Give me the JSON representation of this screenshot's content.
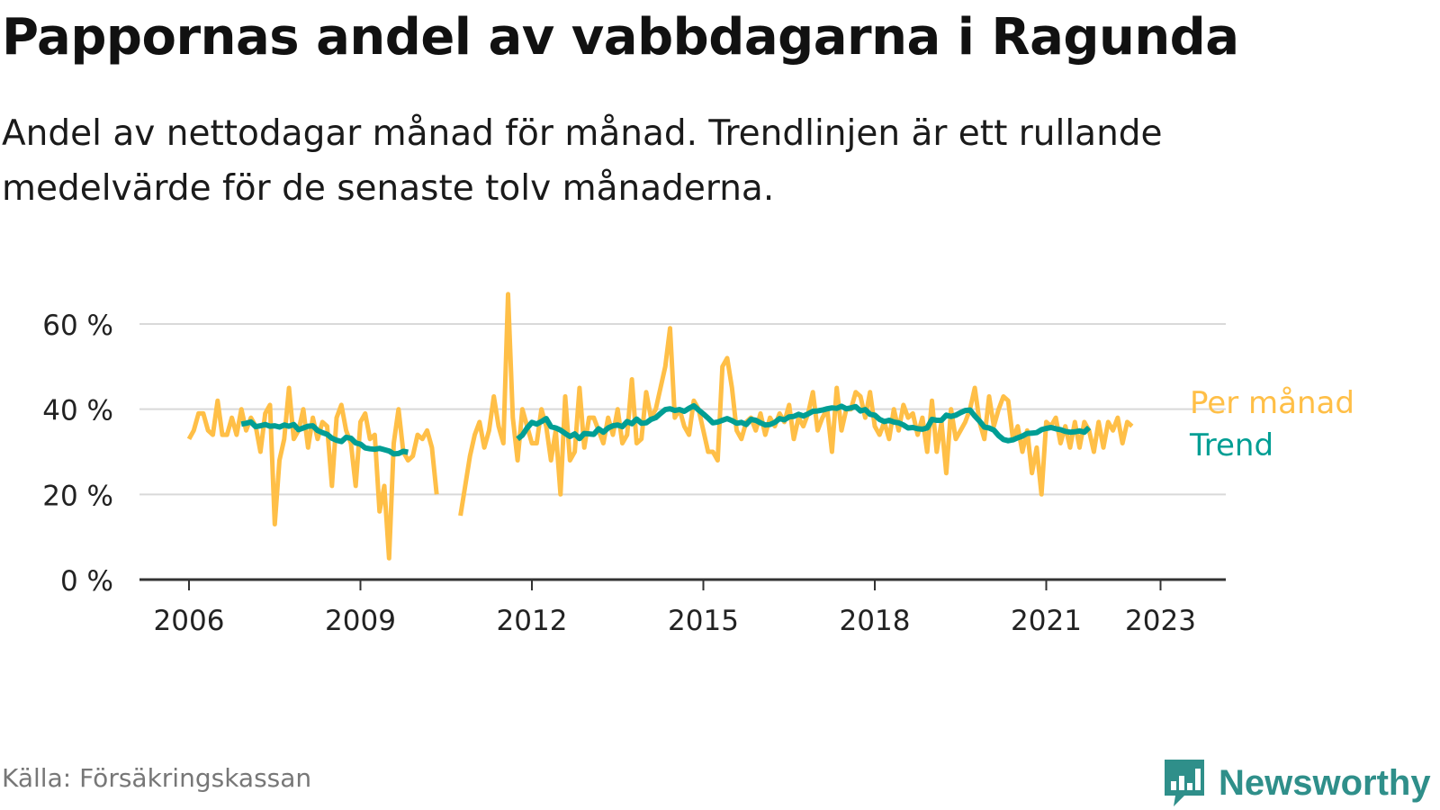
{
  "title": "Pappornas andel av vabbdagarna i Ragunda",
  "subtitle": "Andel av nettodagar månad för månad. Trendlinjen är ett rullande medelvärde för de senaste tolv månaderna.",
  "source": "Källa: Försäkringskassan",
  "brand": {
    "name": "Newsworthy",
    "logo_icon": "bar-chart-speech-bubble-icon"
  },
  "colors": {
    "monthly": "#ffbf47",
    "trend": "#009e94",
    "grid": "#d9d9d9",
    "axis": "#333333",
    "brand": "#2f8f8a"
  },
  "chart_data": {
    "type": "line",
    "xlabel": "",
    "ylabel": "",
    "x_ticks": [
      "2006",
      "2009",
      "2012",
      "2015",
      "2018",
      "2021",
      "2023"
    ],
    "x_tick_values": [
      2006,
      2009,
      2012,
      2015,
      2018,
      2021,
      2023
    ],
    "y_ticks": [
      "0 %",
      "20 %",
      "40 %",
      "60 %"
    ],
    "y_tick_values": [
      0,
      20,
      40,
      60
    ],
    "xlim": [
      2006,
      2024.2
    ],
    "ylim": [
      0,
      60
    ],
    "series": [
      {
        "name": "Per månad",
        "color": "#ffbf47",
        "segments": [
          {
            "start": 2006.0,
            "values": [
              33,
              35,
              39,
              39,
              35,
              34,
              42,
              34,
              34,
              38,
              34,
              40,
              35,
              38,
              36,
              30,
              39,
              41,
              13,
              28,
              33,
              45,
              33,
              35,
              40,
              31,
              38,
              33,
              37,
              36,
              22,
              38,
              41,
              35,
              32,
              22,
              37,
              39,
              33,
              34,
              16,
              22,
              5,
              32,
              40,
              30,
              28,
              29,
              34,
              33,
              35,
              31,
              20
            ]
          },
          {
            "start": 2010.75,
            "values": [
              15,
              22,
              29,
              34,
              37,
              31,
              35,
              43,
              36,
              32,
              67,
              38,
              28,
              40,
              36,
              32,
              32,
              40,
              36,
              28,
              35,
              20,
              43,
              28,
              30,
              45,
              31,
              38,
              38,
              35,
              32,
              38,
              34,
              40,
              32,
              34,
              47,
              32,
              33,
              44,
              38,
              40,
              45,
              50,
              59,
              38,
              40,
              36,
              34,
              42,
              40,
              35,
              30,
              30,
              28,
              50,
              52,
              45,
              35,
              33,
              37,
              38,
              35,
              39,
              34,
              38,
              36,
              39,
              37,
              41,
              33,
              38,
              36,
              39,
              44,
              35,
              38,
              40,
              30,
              45,
              35,
              40,
              40,
              44,
              43,
              38,
              44,
              36,
              34,
              37,
              33,
              40,
              35,
              41,
              38,
              39,
              34,
              38,
              30,
              42,
              30,
              37,
              25,
              40,
              33,
              35,
              37,
              40,
              45,
              37,
              33,
              43,
              36,
              40,
              43,
              42,
              33,
              36,
              30,
              35,
              25,
              31,
              20,
              37,
              36,
              38,
              32,
              36,
              31,
              37,
              31,
              37,
              35,
              30,
              37,
              31,
              37,
              35,
              38,
              32,
              37,
              36
            ]
          }
        ]
      },
      {
        "name": "Trend",
        "color": "#009e94",
        "segments": [
          {
            "start": 2006.917,
            "values": [
              36.5,
              36.7,
              37.0,
              35.9,
              36.1,
              36.4,
              36.0,
              36.1,
              35.8,
              36.3,
              36.0,
              36.4,
              35.2,
              35.6,
              36.0,
              36.1,
              35.0,
              34.5,
              34.1,
              33.2,
              32.7,
              32.4,
              33.4,
              33.2,
              32.1,
              31.8,
              30.9,
              30.7,
              30.6,
              30.8,
              30.5,
              30.2,
              29.5,
              29.6,
              30.1,
              29.9
            ]
          },
          {
            "start": 2011.75,
            "values": [
              33.0,
              33.9,
              35.6,
              36.9,
              36.5,
              37.1,
              37.8,
              35.9,
              35.6,
              35.1,
              34.3,
              33.6,
              34.2,
              33.1,
              34.3,
              34.2,
              34.1,
              35.4,
              34.6,
              35.6,
              36.1,
              36.3,
              35.9,
              37.1,
              36.6,
              37.7,
              36.7,
              36.8,
              37.6,
              38.0,
              39.0,
              39.9,
              40.1,
              39.7,
              39.9,
              39.5,
              40.2,
              40.8,
              39.8,
              38.9,
              37.9,
              36.8,
              37.0,
              37.4,
              37.8,
              37.3,
              36.7,
              36.9,
              36.4,
              37.6,
              37.4,
              36.8,
              36.3,
              36.4,
              36.9,
              37.8,
              37.5,
              38.2,
              38.3,
              38.8,
              38.4,
              38.9,
              39.5,
              39.6,
              39.8,
              40.1,
              40.3,
              40.2,
              40.7,
              40.1,
              40.3,
              40.6,
              39.6,
              39.9,
              38.8,
              38.6,
              37.6,
              37.1,
              37.4,
              37.0,
              36.8,
              36.3,
              35.6,
              35.7,
              35.4,
              35.3,
              35.6,
              37.6,
              37.4,
              37.4,
              38.6,
              38.3,
              38.6,
              39.2,
              39.7,
              39.8,
              38.4,
              37.2,
              35.8,
              35.6,
              35.1,
              33.8,
              32.9,
              32.6,
              32.8,
              33.3,
              33.7,
              34.3,
              34.4,
              34.5,
              35.2,
              35.5,
              35.7,
              35.4,
              35.2,
              34.8,
              34.6,
              34.7,
              34.9,
              34.6,
              35.7
            ]
          }
        ]
      }
    ],
    "legend": [
      {
        "label": "Per månad",
        "color": "#ffbf47"
      },
      {
        "label": "Trend",
        "color": "#009e94"
      }
    ],
    "legend_placement": "right, at line ends"
  }
}
